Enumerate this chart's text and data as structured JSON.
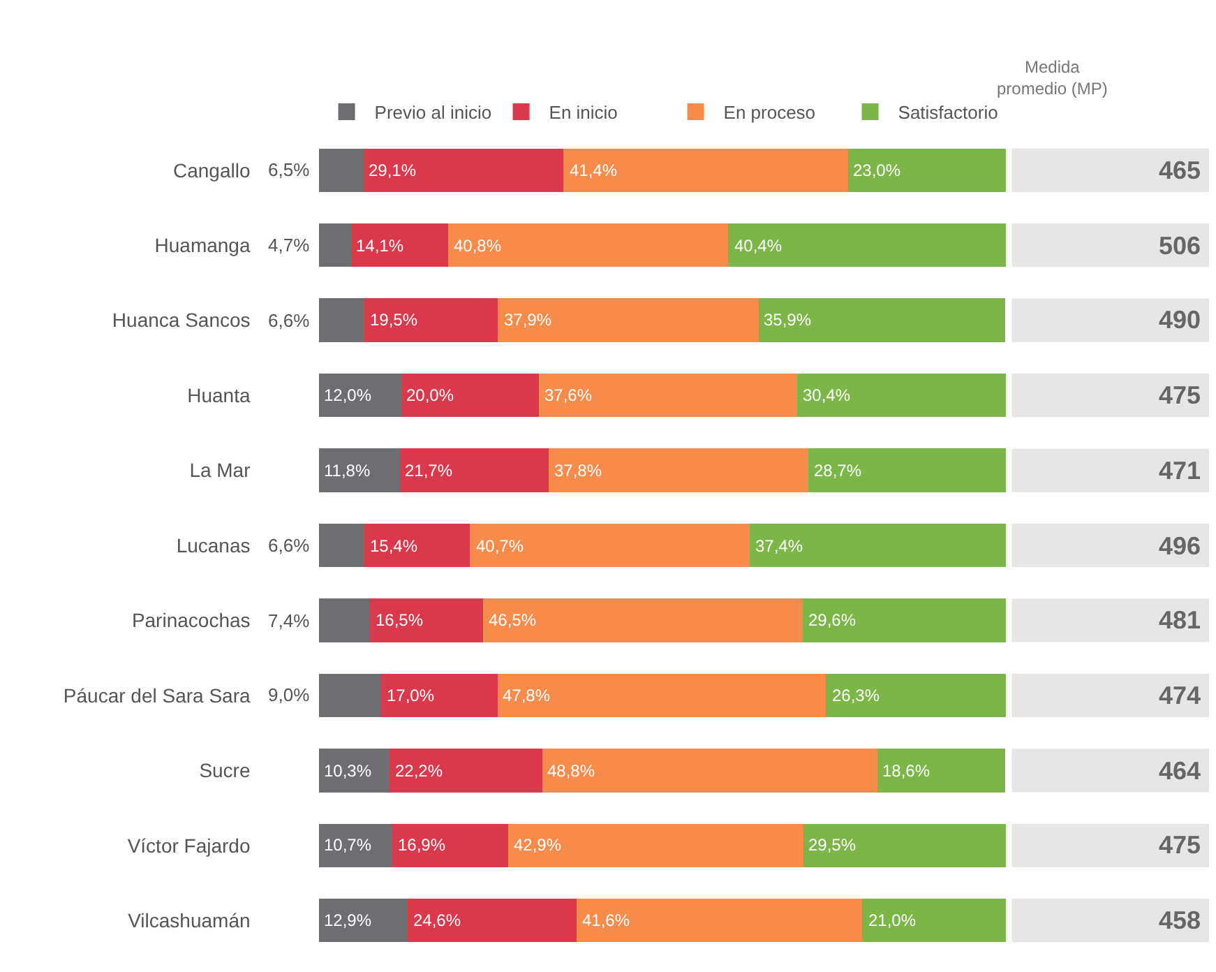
{
  "chart_data": [
    {
      "type": "bar",
      "orientation": "horizontal",
      "stacked": true,
      "legend": "top",
      "xlim": [
        0,
        100
      ],
      "tick_labels": "y",
      "categories": [
        "Cangallo",
        "Huamanga",
        "Huanca Sancos",
        "Huanta",
        "La Mar",
        "Lucanas",
        "Parinacochas",
        "Páucar del Sara Sara",
        "Sucre",
        "Víctor Fajardo",
        "Vilcashuamán"
      ],
      "series": [
        {
          "name": "Previo al inicio",
          "color": "#6d6e71",
          "values": [
            6.5,
            4.7,
            6.6,
            12.0,
            11.8,
            6.6,
            7.4,
            9.0,
            10.3,
            10.7,
            12.9
          ],
          "value_labels": [
            "6,5%",
            "4,7%",
            "6,6%",
            "12,0%",
            "11,8%",
            "6,6%",
            "7,4%",
            "9,0%",
            "10,3%",
            "10,7%",
            "12,9%"
          ]
        },
        {
          "name": "En inicio",
          "color": "#d9394a",
          "values": [
            29.1,
            14.1,
            19.5,
            20.0,
            21.7,
            15.4,
            16.5,
            17.0,
            22.2,
            16.9,
            24.6
          ],
          "value_labels": [
            "29,1%",
            "14,1%",
            "19,5%",
            "20,0%",
            "21,7%",
            "15,4%",
            "16,5%",
            "17,0%",
            "22,2%",
            "16,9%",
            "24,6%"
          ]
        },
        {
          "name": "En proceso",
          "color": "#f68b4c",
          "values": [
            41.4,
            40.8,
            37.9,
            37.6,
            37.8,
            40.7,
            46.5,
            47.8,
            48.8,
            42.9,
            41.6
          ],
          "value_labels": [
            "41,4%",
            "40,8%",
            "37,9%",
            "37,6%",
            "37,8%",
            "40,7%",
            "46,5%",
            "47,8%",
            "48,8%",
            "42,9%",
            "41,6%"
          ]
        },
        {
          "name": "Satisfactorio",
          "color": "#7ab648",
          "values": [
            23.0,
            40.4,
            35.9,
            30.4,
            28.7,
            37.4,
            29.6,
            26.3,
            18.6,
            29.5,
            21.0
          ],
          "value_labels": [
            "23,0%",
            "40,4%",
            "35,9%",
            "30,4%",
            "28,7%",
            "37,4%",
            "29,6%",
            "26,3%",
            "18,6%",
            "29,5%",
            "21,0%"
          ]
        }
      ]
    },
    {
      "type": "other",
      "title": "Medida\npromedio (MP)",
      "value_labels": [
        "465",
        "506",
        "490",
        "475",
        "471",
        "496",
        "481",
        "474",
        "464",
        "475",
        "458"
      ]
    }
  ]
}
